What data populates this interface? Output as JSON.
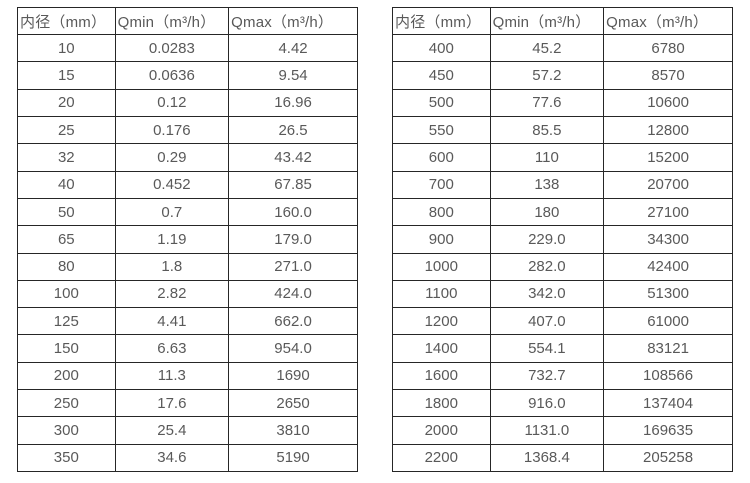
{
  "colors": {
    "background": "#ffffff",
    "text": "#595959",
    "border": "#262626"
  },
  "tables": [
    {
      "name": "small-diameters",
      "headers": [
        "内径（mm）",
        "Qmin（m³/h）",
        "Qmax（m³/h）"
      ],
      "rows": [
        [
          "10",
          "0.0283",
          "4.42"
        ],
        [
          "15",
          "0.0636",
          "9.54"
        ],
        [
          "20",
          "0.12",
          "16.96"
        ],
        [
          "25",
          "0.176",
          "26.5"
        ],
        [
          "32",
          "0.29",
          "43.42"
        ],
        [
          "40",
          "0.452",
          "67.85"
        ],
        [
          "50",
          "0.7",
          "160.0"
        ],
        [
          "65",
          "1.19",
          "179.0"
        ],
        [
          "80",
          "1.8",
          "271.0"
        ],
        [
          "100",
          "2.82",
          "424.0"
        ],
        [
          "125",
          "4.41",
          "662.0"
        ],
        [
          "150",
          "6.63",
          "954.0"
        ],
        [
          "200",
          "11.3",
          "1690"
        ],
        [
          "250",
          "17.6",
          "2650"
        ],
        [
          "300",
          "25.4",
          "3810"
        ],
        [
          "350",
          "34.6",
          "5190"
        ]
      ]
    },
    {
      "name": "large-diameters",
      "headers": [
        "内径（mm）",
        "Qmin（m³/h）",
        "Qmax（m³/h）"
      ],
      "rows": [
        [
          "400",
          "45.2",
          "6780"
        ],
        [
          "450",
          "57.2",
          "8570"
        ],
        [
          "500",
          "77.6",
          "10600"
        ],
        [
          "550",
          "85.5",
          "12800"
        ],
        [
          "600",
          "110",
          "15200"
        ],
        [
          "700",
          "138",
          "20700"
        ],
        [
          "800",
          "180",
          "27100"
        ],
        [
          "900",
          "229.0",
          "34300"
        ],
        [
          "1000",
          "282.0",
          "42400"
        ],
        [
          "1100",
          "342.0",
          "51300"
        ],
        [
          "1200",
          "407.0",
          "61000"
        ],
        [
          "1400",
          "554.1",
          "83121"
        ],
        [
          "1600",
          "732.7",
          "108566"
        ],
        [
          "1800",
          "916.0",
          "137404"
        ],
        [
          "2000",
          "1131.0",
          "169635"
        ],
        [
          "2200",
          "1368.4",
          "205258"
        ]
      ]
    }
  ]
}
